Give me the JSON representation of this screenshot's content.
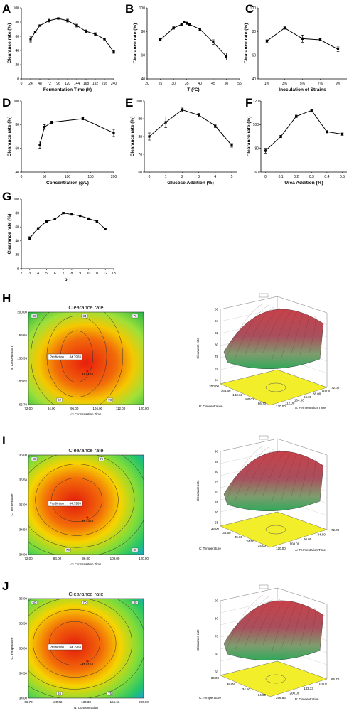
{
  "chart_data": [
    {
      "id": "A",
      "type": "line",
      "xlabel": "Fermentation Time (h)",
      "ylabel": "Clearance rate (%)",
      "x": [
        24,
        36,
        48,
        72,
        96,
        120,
        144,
        168,
        192,
        216,
        240
      ],
      "y": [
        56,
        66,
        75,
        82,
        85,
        82,
        75,
        67,
        63,
        56,
        38
      ],
      "err": [
        4,
        1,
        1,
        2,
        1,
        2,
        2,
        2,
        2,
        1,
        2
      ],
      "xticks": [
        "0",
        "24",
        "48",
        "72",
        "96",
        "120",
        "144",
        "168",
        "192",
        "216",
        "240"
      ],
      "xlim": [
        0,
        240
      ],
      "yticks": [
        "0",
        "20",
        "40",
        "60",
        "80",
        "100"
      ],
      "ylim": [
        0,
        100
      ]
    },
    {
      "id": "B",
      "type": "line",
      "xlabel": "T (°C)",
      "ylabel": "Clearance rate (%)",
      "x": [
        25,
        30,
        33,
        34,
        35,
        36,
        40,
        45,
        50
      ],
      "y": [
        73,
        83,
        86,
        88,
        87,
        86,
        82,
        71,
        59
      ],
      "err": [
        1,
        1,
        1,
        1,
        1,
        1,
        1,
        2,
        3
      ],
      "xticks": [
        "20",
        "25",
        "30",
        "35",
        "40",
        "45",
        "50",
        "55"
      ],
      "xlim": [
        20,
        55
      ],
      "yticks": [
        "40",
        "60",
        "80",
        "100"
      ],
      "ylim": [
        40,
        100
      ]
    },
    {
      "id": "C",
      "type": "line",
      "xlabel": "Inoculation of Strains",
      "ylabel": "Clearance rate (%)",
      "categories": [
        "1%",
        "3%",
        "5%",
        "7%",
        "9%"
      ],
      "y": [
        72,
        83,
        74,
        73,
        65
      ],
      "err": [
        1,
        1,
        3,
        1,
        2
      ],
      "yticks": [
        "40",
        "60",
        "80",
        "100"
      ],
      "ylim": [
        40,
        100
      ]
    },
    {
      "id": "D",
      "type": "line",
      "xlabel": "Concentration (g/L)",
      "ylabel": "Clearance rate (%)",
      "x": [
        40,
        50,
        66,
        133,
        200
      ],
      "y": [
        63,
        78,
        82,
        85,
        73
      ],
      "err": [
        3,
        2,
        1,
        1,
        3
      ],
      "xticks": [
        "0",
        "50",
        "100",
        "150",
        "200"
      ],
      "xlim": [
        0,
        200
      ],
      "yticks": [
        "40",
        "60",
        "80",
        "100"
      ],
      "ylim": [
        40,
        100
      ]
    },
    {
      "id": "E",
      "type": "line",
      "xlabel": "Glucose Addition (%)",
      "ylabel": "Clearance rate (%)",
      "x": [
        0,
        1,
        2,
        3,
        4,
        5
      ],
      "y": [
        80,
        88,
        95,
        92,
        86,
        75
      ],
      "err": [
        2,
        3,
        1,
        1,
        1,
        1
      ],
      "xticks": [
        "0",
        "1",
        "2",
        "3",
        "4",
        "5"
      ],
      "xlim": [
        -0.3,
        5.3
      ],
      "yticks": [
        "60",
        "70",
        "80",
        "90",
        "100"
      ],
      "ylim": [
        60,
        100
      ]
    },
    {
      "id": "F",
      "type": "line",
      "xlabel": "Urea Addition (%)",
      "ylabel": "Clearance rate (%)",
      "x": [
        0,
        0.1,
        0.2,
        0.3,
        0.4,
        0.5
      ],
      "y": [
        78,
        90,
        107,
        112,
        94,
        92
      ],
      "err": [
        2,
        1,
        1,
        1,
        1,
        1
      ],
      "xticks": [
        "0",
        "0.1",
        "0.2",
        "0.3",
        "0.4",
        "0.5"
      ],
      "xlim": [
        -0.03,
        0.53
      ],
      "yticks": [
        "60",
        "80",
        "100",
        "120"
      ],
      "ylim": [
        60,
        120
      ]
    },
    {
      "id": "G",
      "type": "line",
      "xlabel": "pH",
      "ylabel": "Clearance rate (%)",
      "x": [
        3,
        4,
        5,
        6,
        7,
        8,
        9,
        10,
        11,
        12
      ],
      "y": [
        44,
        58,
        68,
        71,
        80,
        78,
        76,
        72,
        68,
        57
      ],
      "err": [
        2,
        1,
        1,
        1,
        1,
        1,
        1,
        1,
        1,
        1
      ],
      "xticks": [
        "2",
        "3",
        "4",
        "5",
        "6",
        "7",
        "8",
        "9",
        "10",
        "11",
        "12",
        "13"
      ],
      "xlim": [
        2,
        13
      ],
      "yticks": [
        "0",
        "20",
        "40",
        "60",
        "80",
        "100"
      ],
      "ylim": [
        0,
        100
      ]
    },
    {
      "id": "H",
      "type": "heatmap",
      "title": "Clearance rate",
      "xlabel": "A: Fermentation Time",
      "ylabel": "B: Concentration",
      "xticks": [
        "72.00",
        "84.00",
        "96.00",
        "104.00",
        "112.00",
        "120.00"
      ],
      "yticks": [
        "200.00",
        "166.66",
        "133.33",
        "100.02",
        "66.70"
      ],
      "prediction_label": "Prediction",
      "prediction_value": "84.7903",
      "point_label": "84.6154",
      "contours": [
        "80",
        "82",
        "84",
        "78",
        "76"
      ],
      "surface": {
        "zlabel": "Clearance rate",
        "xlabel": "B: Concentration",
        "ylabel": "A: Fermentation Time",
        "zticks": [
          "86",
          "84",
          "82",
          "80",
          "78",
          "76",
          "74"
        ],
        "xticks": [
          "200.00",
          "166.66",
          "133.33",
          "100.02",
          "66.70"
        ],
        "yticks": [
          "120.00",
          "112.00",
          "104.00",
          "96.00",
          "88.00",
          "80.00",
          "72.00"
        ]
      }
    },
    {
      "id": "I",
      "type": "heatmap",
      "title": "Clearance rate",
      "xlabel": "A: Fermentation Time",
      "ylabel": "C: Temperature",
      "xticks": [
        "72.00",
        "84.00",
        "96.00",
        "108.00",
        "120.00"
      ],
      "yticks": [
        "36.00",
        "35.50",
        "35.00",
        "34.50",
        "34.00"
      ],
      "prediction_label": "Prediction",
      "prediction_value": "84.7903",
      "point_label": "84.4374",
      "contours": [
        "65",
        "70",
        "75",
        "80"
      ],
      "surface": {
        "zlabel": "Clearance rate",
        "xlabel": "C: Temperature",
        "ylabel": "A: Fermentation Time",
        "zticks": [
          "90",
          "85",
          "80",
          "75",
          "70",
          "65",
          "60",
          "55"
        ],
        "xticks": [
          "36.00",
          "35.50",
          "35.00",
          "34.50",
          "34.00"
        ],
        "yticks": [
          "120.00",
          "108.00",
          "96.00",
          "84.00",
          "72.00"
        ]
      }
    },
    {
      "id": "J",
      "type": "heatmap",
      "title": "Clearance rate",
      "xlabel": "B: Concentration",
      "ylabel": "C: Temperature",
      "xticks": [
        "66.70",
        "100.02",
        "133.33",
        "166.66",
        "200.00"
      ],
      "yticks": [
        "36.00",
        "35.50",
        "35.00",
        "34.50",
        "34.00"
      ],
      "prediction_label": "Prediction",
      "prediction_value": "84.7903",
      "point_label": "84.6154",
      "contours": [
        "60",
        "65",
        "70",
        "75",
        "80"
      ],
      "surface": {
        "zlabel": "Clearance rate",
        "xlabel": "C: Temperature",
        "ylabel": "B: Concentration",
        "zticks": [
          "90",
          "80",
          "70",
          "60",
          "50"
        ],
        "xticks": [
          "36.00",
          "35.00",
          "34.50",
          "34.00"
        ],
        "yticks": [
          "266.66",
          "200.00",
          "133.33",
          "100.02",
          "66.70"
        ]
      }
    }
  ]
}
